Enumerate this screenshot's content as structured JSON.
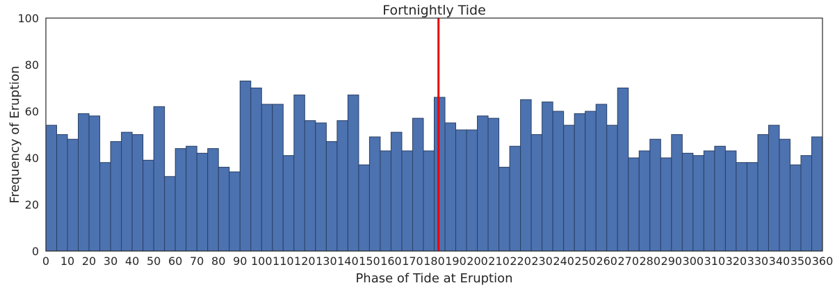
{
  "chart_data": {
    "type": "bar",
    "title": "Fortnightly Tide",
    "xlabel": "Phase of Tide at Eruption",
    "ylabel": "Frequency of Eruption",
    "xlim": [
      0,
      360
    ],
    "ylim": [
      0,
      100
    ],
    "bin_width": 5,
    "x_ticks": [
      0,
      10,
      20,
      30,
      40,
      50,
      60,
      70,
      80,
      90,
      100,
      110,
      120,
      130,
      140,
      150,
      160,
      170,
      180,
      190,
      200,
      210,
      220,
      230,
      240,
      250,
      260,
      270,
      280,
      290,
      300,
      310,
      320,
      330,
      340,
      350,
      360
    ],
    "y_ticks": [
      0,
      20,
      40,
      60,
      80,
      100
    ],
    "bin_starts": [
      0,
      5,
      10,
      15,
      20,
      25,
      30,
      35,
      40,
      45,
      50,
      55,
      60,
      65,
      70,
      75,
      80,
      85,
      90,
      95,
      100,
      105,
      110,
      115,
      120,
      125,
      130,
      135,
      140,
      145,
      150,
      155,
      160,
      165,
      170,
      175,
      180,
      185,
      190,
      195,
      200,
      205,
      210,
      215,
      220,
      225,
      230,
      235,
      240,
      245,
      250,
      255,
      260,
      265,
      270,
      275,
      280,
      285,
      290,
      295,
      300,
      305,
      310,
      315,
      320,
      325,
      330,
      335,
      340,
      345,
      350,
      355
    ],
    "values": [
      54,
      50,
      48,
      59,
      58,
      38,
      47,
      51,
      50,
      39,
      62,
      32,
      44,
      45,
      42,
      44,
      36,
      34,
      73,
      70,
      63,
      63,
      41,
      67,
      56,
      55,
      47,
      56,
      67,
      37,
      49,
      43,
      51,
      43,
      57,
      43,
      66,
      55,
      52,
      52,
      58,
      57,
      36,
      45,
      65,
      50,
      64,
      60,
      54,
      59,
      60,
      63,
      54,
      70,
      40,
      43,
      48,
      40,
      50,
      42,
      41,
      43,
      45,
      43,
      38,
      38,
      50,
      54,
      48,
      37,
      41,
      49
    ],
    "reference_line_x": 182,
    "bar_color": "#4C72B0",
    "bar_edge_color": "#2a3f63",
    "line_color": "#e8000b",
    "grid": false
  }
}
